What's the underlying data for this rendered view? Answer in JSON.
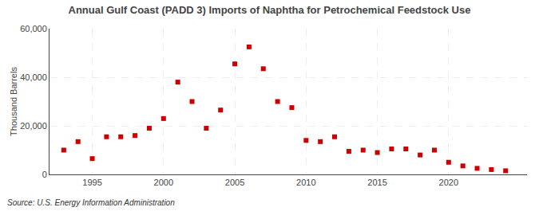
{
  "chart_data": {
    "type": "scatter",
    "title": "Annual Gulf Coast (PADD 3) Imports of Naphtha for Petrochemical Feedstock Use",
    "ylabel": "Thousand Barrels",
    "annotations": [
      "Source: U.S. Energy Information Administration"
    ],
    "x": [
      1993,
      1994,
      1995,
      1996,
      1997,
      1998,
      1999,
      2000,
      2001,
      2002,
      2003,
      2004,
      2005,
      2006,
      2007,
      2008,
      2009,
      2010,
      2011,
      2012,
      2013,
      2014,
      2015,
      2016,
      2017,
      2018,
      2019,
      2020,
      2021,
      2022,
      2023,
      2024
    ],
    "values": [
      10000,
      13500,
      6500,
      15500,
      15500,
      16000,
      19000,
      23000,
      38000,
      30000,
      19000,
      26500,
      45500,
      52500,
      43500,
      30000,
      27500,
      14000,
      13500,
      15500,
      9500,
      10000,
      9000,
      10500,
      10500,
      8000,
      10000,
      5000,
      3500,
      2500,
      2000,
      1500
    ],
    "color": "#cc0000",
    "marker": "square",
    "xlim": [
      1992.0,
      2025.5
    ],
    "xticks": [
      1995,
      2000,
      2005,
      2010,
      2015,
      2020
    ],
    "ylim": [
      0,
      60000
    ],
    "yticks": [
      0,
      {
        "value": 20000,
        "label": "20,000"
      },
      {
        "value": 40000,
        "label": "40,000"
      },
      {
        "value": 60000,
        "label": "60,000"
      }
    ],
    "grid": true
  }
}
